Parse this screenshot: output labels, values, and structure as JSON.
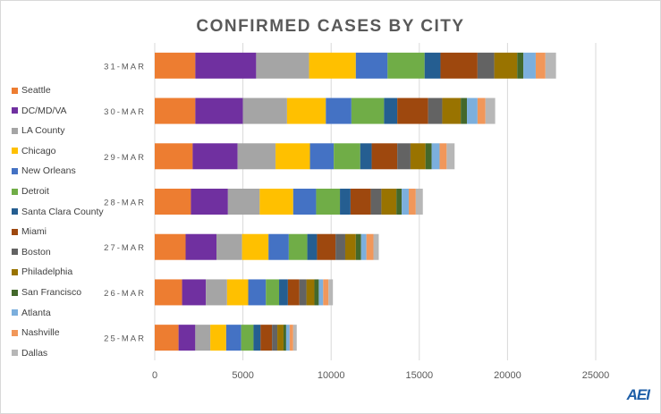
{
  "chart_data": {
    "type": "bar",
    "orientation": "horizontal",
    "stacked": true,
    "title": "CONFIRMED CASES BY CITY",
    "categories": [
      "31-MAR",
      "30-MAR",
      "29-MAR",
      "28-MAR",
      "27-MAR",
      "26-MAR",
      "25-MAR"
    ],
    "xlim": [
      0,
      25000
    ],
    "xticks": [
      0,
      5000,
      10000,
      15000,
      20000,
      25000
    ],
    "grid": true,
    "legend_position": "left",
    "series": [
      {
        "name": "Seattle",
        "color": "#ed7d31",
        "values": [
          2300,
          2300,
          2150,
          2050,
          1750,
          1550,
          1350
        ]
      },
      {
        "name": "DC/MD/VA",
        "color": "#7030a0",
        "values": [
          3450,
          2700,
          2550,
          2100,
          1750,
          1350,
          950
        ]
      },
      {
        "name": "LA County",
        "color": "#a5a5a5",
        "values": [
          3000,
          2500,
          2150,
          1800,
          1450,
          1200,
          850
        ]
      },
      {
        "name": "Chicago",
        "color": "#ffc000",
        "values": [
          2650,
          2200,
          1950,
          1900,
          1500,
          1200,
          900
        ]
      },
      {
        "name": "New Orleans",
        "color": "#4472c4",
        "values": [
          1800,
          1450,
          1350,
          1300,
          1150,
          1000,
          850
        ]
      },
      {
        "name": "Detroit",
        "color": "#70ad47",
        "values": [
          2100,
          1850,
          1500,
          1350,
          1050,
          750,
          700
        ]
      },
      {
        "name": "Santa Clara County",
        "color": "#255e91",
        "values": [
          900,
          750,
          650,
          600,
          550,
          500,
          400
        ]
      },
      {
        "name": "Miami",
        "color": "#9e480e",
        "values": [
          2100,
          1750,
          1450,
          1150,
          1050,
          650,
          650
        ]
      },
      {
        "name": "Boston",
        "color": "#636363",
        "values": [
          950,
          800,
          750,
          600,
          550,
          400,
          300
        ]
      },
      {
        "name": "Philadelphia",
        "color": "#997300",
        "values": [
          1300,
          1050,
          850,
          850,
          600,
          450,
          350
        ]
      },
      {
        "name": "San Francisco",
        "color": "#43682b",
        "values": [
          350,
          350,
          350,
          300,
          300,
          250,
          150
        ]
      },
      {
        "name": "Atlanta",
        "color": "#7cafdd",
        "values": [
          700,
          600,
          450,
          400,
          300,
          250,
          200
        ]
      },
      {
        "name": "Nashville",
        "color": "#f1975a",
        "values": [
          550,
          450,
          400,
          400,
          400,
          300,
          200
        ]
      },
      {
        "name": "Dallas",
        "color": "#b7b7b7",
        "values": [
          600,
          550,
          450,
          400,
          300,
          250,
          200
        ]
      }
    ]
  },
  "branding": {
    "logo_text": "AEI"
  }
}
